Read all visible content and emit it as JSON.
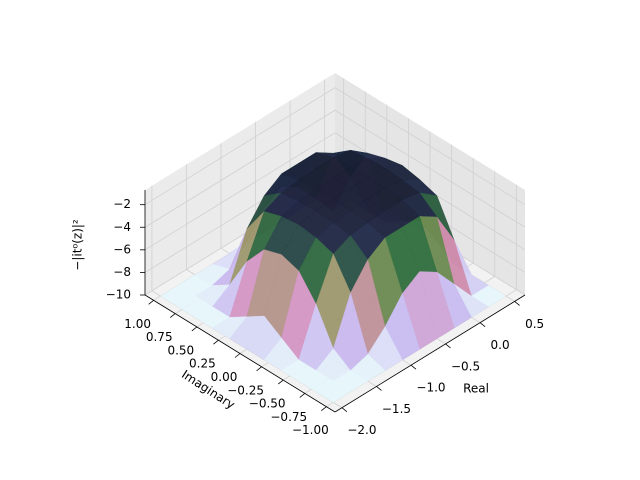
{
  "chart_data": {
    "type": "surface3d",
    "x_label": "Real",
    "y_label": "Imaginary",
    "z_label": "−|it⁰(z)|²",
    "xlim": [
      -2.1,
      0.65
    ],
    "ylim": [
      -1.1,
      1.1
    ],
    "zlim": [
      -10,
      -0.7
    ],
    "xticks": [
      {
        "value": -2.0,
        "label": "−2.0"
      },
      {
        "value": -1.5,
        "label": "−1.5"
      },
      {
        "value": -1.0,
        "label": "−1.0"
      },
      {
        "value": -0.5,
        "label": "−0.5"
      },
      {
        "value": 0.0,
        "label": "0.0"
      },
      {
        "value": 0.5,
        "label": "0.5"
      }
    ],
    "yticks": [
      {
        "value": -1.0,
        "label": "−1.00"
      },
      {
        "value": -0.75,
        "label": "−0.75"
      },
      {
        "value": -0.5,
        "label": "−0.50"
      },
      {
        "value": -0.25,
        "label": "−0.25"
      },
      {
        "value": 0.0,
        "label": "0.00"
      },
      {
        "value": 0.25,
        "label": "0.25"
      },
      {
        "value": 0.5,
        "label": "0.50"
      },
      {
        "value": 0.75,
        "label": "0.75"
      },
      {
        "value": 1.0,
        "label": "1.00"
      }
    ],
    "zticks": [
      {
        "value": -10,
        "label": "−10"
      },
      {
        "value": -8,
        "label": "−8"
      },
      {
        "value": -6,
        "label": "−6"
      },
      {
        "value": -4,
        "label": "−4"
      },
      {
        "value": -2,
        "label": "−2"
      }
    ],
    "grid": true,
    "colormap": [
      "#e6f6fb",
      "#c7b9f0",
      "#d68bb6",
      "#8f9a5c",
      "#2f6f3d",
      "#1f2a4a",
      "#0e0e1c"
    ],
    "x": [
      -2.0,
      -1.75,
      -1.5,
      -1.25,
      -1.0,
      -0.75,
      -0.5,
      -0.25,
      0.0,
      0.25,
      0.5
    ],
    "y": [
      -1.0,
      -0.8,
      -0.6,
      -0.4,
      -0.2,
      0.0,
      0.2,
      0.4,
      0.6,
      0.8,
      1.0
    ],
    "z": [
      [
        -10,
        -10,
        -10,
        -10,
        -10,
        -10,
        -10,
        -10,
        -10,
        -10,
        -10
      ],
      [
        -10,
        -10,
        -10,
        -9.5,
        -8,
        -6,
        -5,
        -6,
        -8,
        -10,
        -10
      ],
      [
        -10,
        -10,
        -9,
        -5,
        -3,
        -2,
        -2,
        -2,
        -3,
        -6,
        -10
      ],
      [
        -10,
        -10,
        -6,
        -2.5,
        -1.8,
        -1.6,
        -1.5,
        -1.5,
        -1.8,
        -3,
        -10
      ],
      [
        -10,
        -9,
        -4,
        -2,
        -1.6,
        -1.5,
        -1.4,
        -1.4,
        -1.6,
        -2.5,
        -9
      ],
      [
        -10,
        -8,
        -3.5,
        -1.8,
        -1.5,
        -1.4,
        -1.4,
        -1.4,
        -1.5,
        -2.2,
        -8
      ],
      [
        -10,
        -9,
        -4,
        -2,
        -1.6,
        -1.5,
        -1.4,
        -1.4,
        -1.6,
        -2.5,
        -9
      ],
      [
        -10,
        -10,
        -6,
        -2.5,
        -1.8,
        -1.6,
        -1.5,
        -1.5,
        -1.8,
        -3,
        -10
      ],
      [
        -10,
        -10,
        -9,
        -5,
        -3,
        -2,
        -2,
        -2,
        -3,
        -6,
        -10
      ],
      [
        -10,
        -10,
        -10,
        -9.5,
        -8,
        -6,
        -5,
        -6,
        -8,
        -10,
        -10
      ],
      [
        -10,
        -10,
        -10,
        -10,
        -10,
        -10,
        -10,
        -10,
        -10,
        -10,
        -10
      ]
    ]
  }
}
